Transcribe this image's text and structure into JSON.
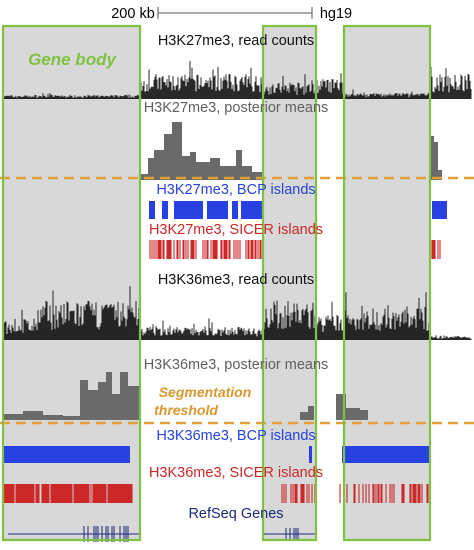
{
  "scale_label": "200 kb",
  "assembly_label": "hg19",
  "tracks": {
    "k27_reads": "H3K27me3, read counts",
    "k27_posterior": "H3K27me3, posterior means",
    "k27_bcp": "H3K27me3, BCP islands",
    "k27_sicer": "H3K27me3, SICER islands",
    "k36_reads": "H3K36me3, read counts",
    "k36_posterior": "H3K36me3, posterior means",
    "k36_bcp": "H3K36me3, BCP islands",
    "k36_sicer": "H3K36me3, SICER islands",
    "refseq": "RefSeq Genes"
  },
  "annotations": {
    "gene_body": "Gene body",
    "segmentation_line1": "Segmentation",
    "segmentation_line2": "threshold"
  },
  "colors": {
    "gene_box_border": "#7fc241",
    "gene_box_fill": "#d8d8d8",
    "threshold_line": "#e0a03a",
    "bcp_islands": "#2742e0",
    "sicer_islands": "#cc2828",
    "read_counts": "#111111",
    "posterior_means": "#6a6a6a",
    "refseq_genes": "#1c2a7a"
  }
}
